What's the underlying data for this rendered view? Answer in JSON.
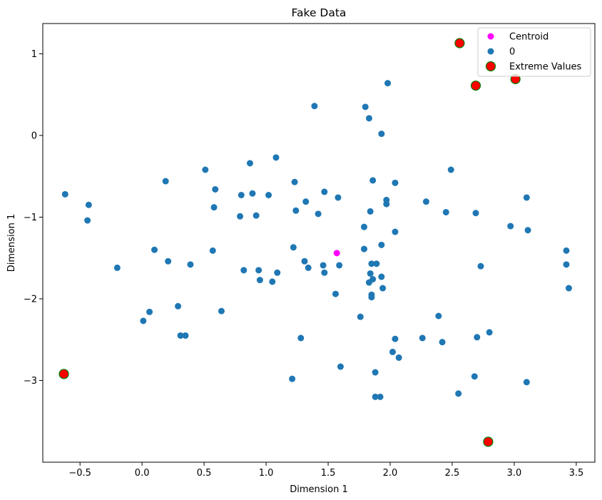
{
  "chart_data": {
    "type": "scatter",
    "title": "Fake Data",
    "xlabel": "Dimension 1",
    "ylabel": "Dimension 1",
    "xlim": [
      -0.8,
      3.65
    ],
    "ylim": [
      -4.0,
      1.37
    ],
    "xticks": [
      -0.5,
      0.0,
      0.5,
      1.0,
      1.5,
      2.0,
      2.5,
      3.0,
      3.5
    ],
    "xtick_labels": [
      "−0.5",
      "0.0",
      "0.5",
      "1.0",
      "1.5",
      "2.0",
      "2.5",
      "3.0",
      "3.5"
    ],
    "yticks": [
      1,
      0,
      -1,
      -2,
      -3
    ],
    "ytick_labels": [
      "1",
      "0",
      "−1",
      "−2",
      "−3"
    ],
    "grid": false,
    "legend_position": "top-right",
    "colors": {
      "points": "#1f77b4",
      "centroid": "#ff00ff",
      "extreme_fill": "#ff0000",
      "extreme_edge": "#008000"
    },
    "series": [
      {
        "name": "Centroid",
        "role": "centroid",
        "points": [
          [
            1.57,
            -1.44
          ]
        ]
      },
      {
        "name": "0",
        "role": "points",
        "points": [
          [
            1.39,
            0.36
          ],
          [
            1.8,
            0.35
          ],
          [
            1.83,
            0.21
          ],
          [
            1.98,
            0.64
          ],
          [
            1.93,
            0.02
          ],
          [
            -0.62,
            -0.72
          ],
          [
            -0.43,
            -0.85
          ],
          [
            -0.44,
            -1.04
          ],
          [
            0.19,
            -0.56
          ],
          [
            0.51,
            -0.42
          ],
          [
            0.59,
            -0.66
          ],
          [
            0.58,
            -0.88
          ],
          [
            0.8,
            -0.73
          ],
          [
            0.79,
            -0.99
          ],
          [
            0.89,
            -0.71
          ],
          [
            0.87,
            -0.34
          ],
          [
            0.92,
            -0.98
          ],
          [
            1.02,
            -0.73
          ],
          [
            1.08,
            -0.27
          ],
          [
            1.23,
            -0.57
          ],
          [
            1.24,
            -0.92
          ],
          [
            1.32,
            -0.81
          ],
          [
            1.42,
            -0.96
          ],
          [
            1.47,
            -0.69
          ],
          [
            1.58,
            -0.76
          ],
          [
            1.84,
            -0.93
          ],
          [
            1.86,
            -0.55
          ],
          [
            1.97,
            -0.84
          ],
          [
            1.97,
            -0.79
          ],
          [
            2.04,
            -0.58
          ],
          [
            2.29,
            -0.81
          ],
          [
            2.45,
            -0.94
          ],
          [
            2.49,
            -0.42
          ],
          [
            2.69,
            -0.95
          ],
          [
            2.97,
            -1.11
          ],
          [
            3.1,
            -0.76
          ],
          [
            3.11,
            -1.16
          ],
          [
            -0.2,
            -1.62
          ],
          [
            0.1,
            -1.4
          ],
          [
            0.21,
            -1.54
          ],
          [
            0.39,
            -1.58
          ],
          [
            0.57,
            -1.41
          ],
          [
            0.82,
            -1.65
          ],
          [
            0.94,
            -1.65
          ],
          [
            0.95,
            -1.77
          ],
          [
            1.05,
            -1.79
          ],
          [
            1.09,
            -1.68
          ],
          [
            1.22,
            -1.37
          ],
          [
            1.31,
            -1.54
          ],
          [
            1.34,
            -1.62
          ],
          [
            1.46,
            -1.59
          ],
          [
            1.47,
            -1.68
          ],
          [
            1.56,
            -1.94
          ],
          [
            1.59,
            -1.59
          ],
          [
            1.79,
            -1.12
          ],
          [
            1.79,
            -1.39
          ],
          [
            1.83,
            -1.8
          ],
          [
            1.84,
            -1.69
          ],
          [
            1.85,
            -1.57
          ],
          [
            1.85,
            -1.95
          ],
          [
            1.85,
            -1.98
          ],
          [
            1.86,
            -1.76
          ],
          [
            1.89,
            -1.57
          ],
          [
            1.93,
            -1.34
          ],
          [
            1.93,
            -1.73
          ],
          [
            1.94,
            -1.87
          ],
          [
            2.04,
            -1.18
          ],
          [
            2.73,
            -1.6
          ],
          [
            3.42,
            -1.41
          ],
          [
            3.42,
            -1.58
          ],
          [
            3.44,
            -1.87
          ],
          [
            0.01,
            -2.27
          ],
          [
            0.06,
            -2.16
          ],
          [
            0.29,
            -2.09
          ],
          [
            0.31,
            -2.45
          ],
          [
            0.35,
            -2.45
          ],
          [
            0.64,
            -2.15
          ],
          [
            1.21,
            -2.98
          ],
          [
            1.28,
            -2.48
          ],
          [
            1.6,
            -2.83
          ],
          [
            1.76,
            -2.22
          ],
          [
            1.88,
            -2.9
          ],
          [
            1.88,
            -3.2
          ],
          [
            1.92,
            -3.2
          ],
          [
            2.02,
            -2.65
          ],
          [
            2.04,
            -2.49
          ],
          [
            2.07,
            -2.72
          ],
          [
            2.26,
            -2.48
          ],
          [
            2.39,
            -2.21
          ],
          [
            2.42,
            -2.53
          ],
          [
            2.55,
            -3.16
          ],
          [
            2.68,
            -2.95
          ],
          [
            2.7,
            -2.47
          ],
          [
            2.8,
            -2.41
          ],
          [
            3.1,
            -3.02
          ]
        ]
      },
      {
        "name": "Extreme Values",
        "role": "extreme",
        "points": [
          [
            2.56,
            1.13
          ],
          [
            2.69,
            0.61
          ],
          [
            3.01,
            0.69
          ],
          [
            -0.63,
            -2.92
          ],
          [
            2.79,
            -3.75
          ]
        ]
      }
    ]
  }
}
